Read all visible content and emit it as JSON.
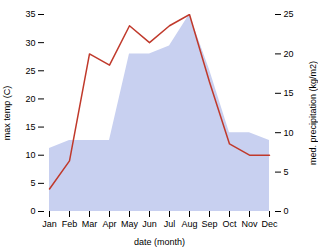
{
  "chart_data": {
    "type": "line",
    "x_label": "date (month)",
    "y_label": "max temp (C)",
    "y2_label": "med. precipitation (kg/m2)",
    "categories": [
      "Jan",
      "Feb",
      "Mar",
      "Apr",
      "May",
      "Jun",
      "Jul",
      "Aug",
      "Sep",
      "Oct",
      "Nov",
      "Dec"
    ],
    "series": [
      {
        "type": "area",
        "axis": "y2",
        "color": "#c8d0f0",
        "values": [
          8,
          9,
          9,
          9,
          20,
          20,
          21,
          25,
          18,
          10,
          10,
          9
        ]
      },
      {
        "type": "line",
        "axis": "y",
        "color": "#c0392b",
        "values": [
          4,
          9,
          28,
          26,
          33,
          30,
          33,
          35,
          23,
          12,
          10,
          10
        ]
      }
    ],
    "ylim": [
      0,
      35
    ],
    "yticks": [
      0,
      5,
      10,
      15,
      20,
      25,
      30,
      35
    ],
    "y2lim": [
      0,
      25
    ],
    "y2ticks": [
      0,
      5,
      10,
      15,
      20,
      25
    ],
    "grid": false
  }
}
